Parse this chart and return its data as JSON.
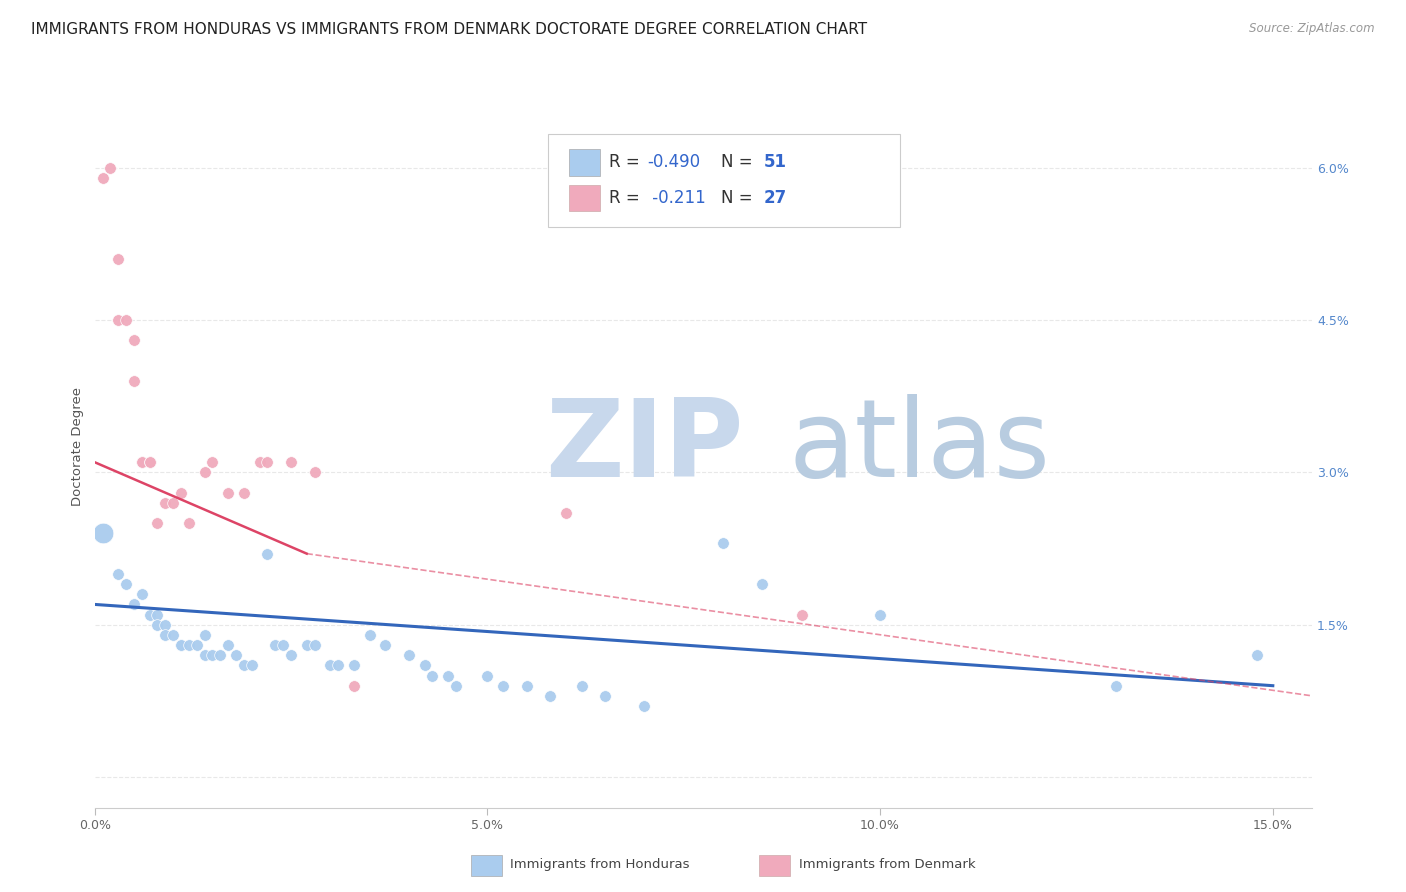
{
  "title": "IMMIGRANTS FROM HONDURAS VS IMMIGRANTS FROM DENMARK DOCTORATE DEGREE CORRELATION CHART",
  "source": "Source: ZipAtlas.com",
  "ylabel": "Doctorate Degree",
  "ytick_labels": [
    "",
    "1.5%",
    "3.0%",
    "4.5%",
    "6.0%"
  ],
  "ytick_values": [
    0.0,
    0.015,
    0.03,
    0.045,
    0.06
  ],
  "xtick_positions": [
    0.0,
    0.05,
    0.1,
    0.15
  ],
  "xtick_labels": [
    "0.0%",
    "5.0%",
    "10.0%",
    "15.0%"
  ],
  "xlim": [
    0.0,
    0.155
  ],
  "ylim": [
    -0.003,
    0.068
  ],
  "legend_honduras": {
    "R": -0.49,
    "N": 51,
    "color": "#aaccee",
    "line_color": "#3366bb"
  },
  "legend_denmark": {
    "R": -0.211,
    "N": 27,
    "color": "#f0aabc",
    "line_color": "#dd4466"
  },
  "honduras_line": [
    0.0,
    0.017,
    0.15,
    0.009
  ],
  "denmark_line_solid": [
    0.0,
    0.031,
    0.027,
    0.022
  ],
  "denmark_line_dashed": [
    0.027,
    0.022,
    0.155,
    0.008
  ],
  "honduras_points": [
    [
      0.001,
      0.024,
      220
    ],
    [
      0.003,
      0.02,
      70
    ],
    [
      0.004,
      0.019,
      70
    ],
    [
      0.005,
      0.017,
      70
    ],
    [
      0.006,
      0.018,
      70
    ],
    [
      0.007,
      0.016,
      70
    ],
    [
      0.008,
      0.016,
      70
    ],
    [
      0.008,
      0.015,
      70
    ],
    [
      0.009,
      0.015,
      70
    ],
    [
      0.009,
      0.014,
      70
    ],
    [
      0.01,
      0.014,
      70
    ],
    [
      0.011,
      0.013,
      70
    ],
    [
      0.011,
      0.013,
      70
    ],
    [
      0.012,
      0.013,
      70
    ],
    [
      0.013,
      0.013,
      70
    ],
    [
      0.014,
      0.014,
      70
    ],
    [
      0.014,
      0.012,
      70
    ],
    [
      0.015,
      0.012,
      70
    ],
    [
      0.016,
      0.012,
      70
    ],
    [
      0.017,
      0.013,
      70
    ],
    [
      0.018,
      0.012,
      70
    ],
    [
      0.019,
      0.011,
      70
    ],
    [
      0.02,
      0.011,
      70
    ],
    [
      0.022,
      0.022,
      70
    ],
    [
      0.023,
      0.013,
      70
    ],
    [
      0.024,
      0.013,
      70
    ],
    [
      0.025,
      0.012,
      70
    ],
    [
      0.027,
      0.013,
      70
    ],
    [
      0.028,
      0.013,
      70
    ],
    [
      0.03,
      0.011,
      70
    ],
    [
      0.031,
      0.011,
      70
    ],
    [
      0.033,
      0.011,
      70
    ],
    [
      0.035,
      0.014,
      70
    ],
    [
      0.037,
      0.013,
      70
    ],
    [
      0.04,
      0.012,
      70
    ],
    [
      0.042,
      0.011,
      70
    ],
    [
      0.043,
      0.01,
      70
    ],
    [
      0.045,
      0.01,
      70
    ],
    [
      0.046,
      0.009,
      70
    ],
    [
      0.05,
      0.01,
      70
    ],
    [
      0.052,
      0.009,
      70
    ],
    [
      0.055,
      0.009,
      70
    ],
    [
      0.058,
      0.008,
      70
    ],
    [
      0.062,
      0.009,
      70
    ],
    [
      0.065,
      0.008,
      70
    ],
    [
      0.07,
      0.007,
      70
    ],
    [
      0.08,
      0.023,
      70
    ],
    [
      0.085,
      0.019,
      70
    ],
    [
      0.1,
      0.016,
      70
    ],
    [
      0.13,
      0.009,
      70
    ],
    [
      0.148,
      0.012,
      70
    ]
  ],
  "denmark_points": [
    [
      0.001,
      0.059,
      70
    ],
    [
      0.002,
      0.06,
      70
    ],
    [
      0.003,
      0.051,
      70
    ],
    [
      0.003,
      0.045,
      70
    ],
    [
      0.004,
      0.045,
      70
    ],
    [
      0.005,
      0.039,
      70
    ],
    [
      0.005,
      0.043,
      70
    ],
    [
      0.006,
      0.031,
      70
    ],
    [
      0.006,
      0.031,
      70
    ],
    [
      0.007,
      0.031,
      70
    ],
    [
      0.007,
      0.031,
      70
    ],
    [
      0.008,
      0.025,
      70
    ],
    [
      0.009,
      0.027,
      70
    ],
    [
      0.01,
      0.027,
      70
    ],
    [
      0.011,
      0.028,
      70
    ],
    [
      0.012,
      0.025,
      70
    ],
    [
      0.014,
      0.03,
      70
    ],
    [
      0.015,
      0.031,
      70
    ],
    [
      0.017,
      0.028,
      70
    ],
    [
      0.019,
      0.028,
      70
    ],
    [
      0.021,
      0.031,
      70
    ],
    [
      0.022,
      0.031,
      70
    ],
    [
      0.025,
      0.031,
      70
    ],
    [
      0.028,
      0.03,
      70
    ],
    [
      0.033,
      0.009,
      70
    ],
    [
      0.06,
      0.026,
      70
    ],
    [
      0.09,
      0.016,
      70
    ]
  ],
  "background_color": "#ffffff",
  "grid_color": "#e8e8e8",
  "title_fontsize": 11,
  "axis_fontsize": 9.5,
  "tick_fontsize": 9
}
